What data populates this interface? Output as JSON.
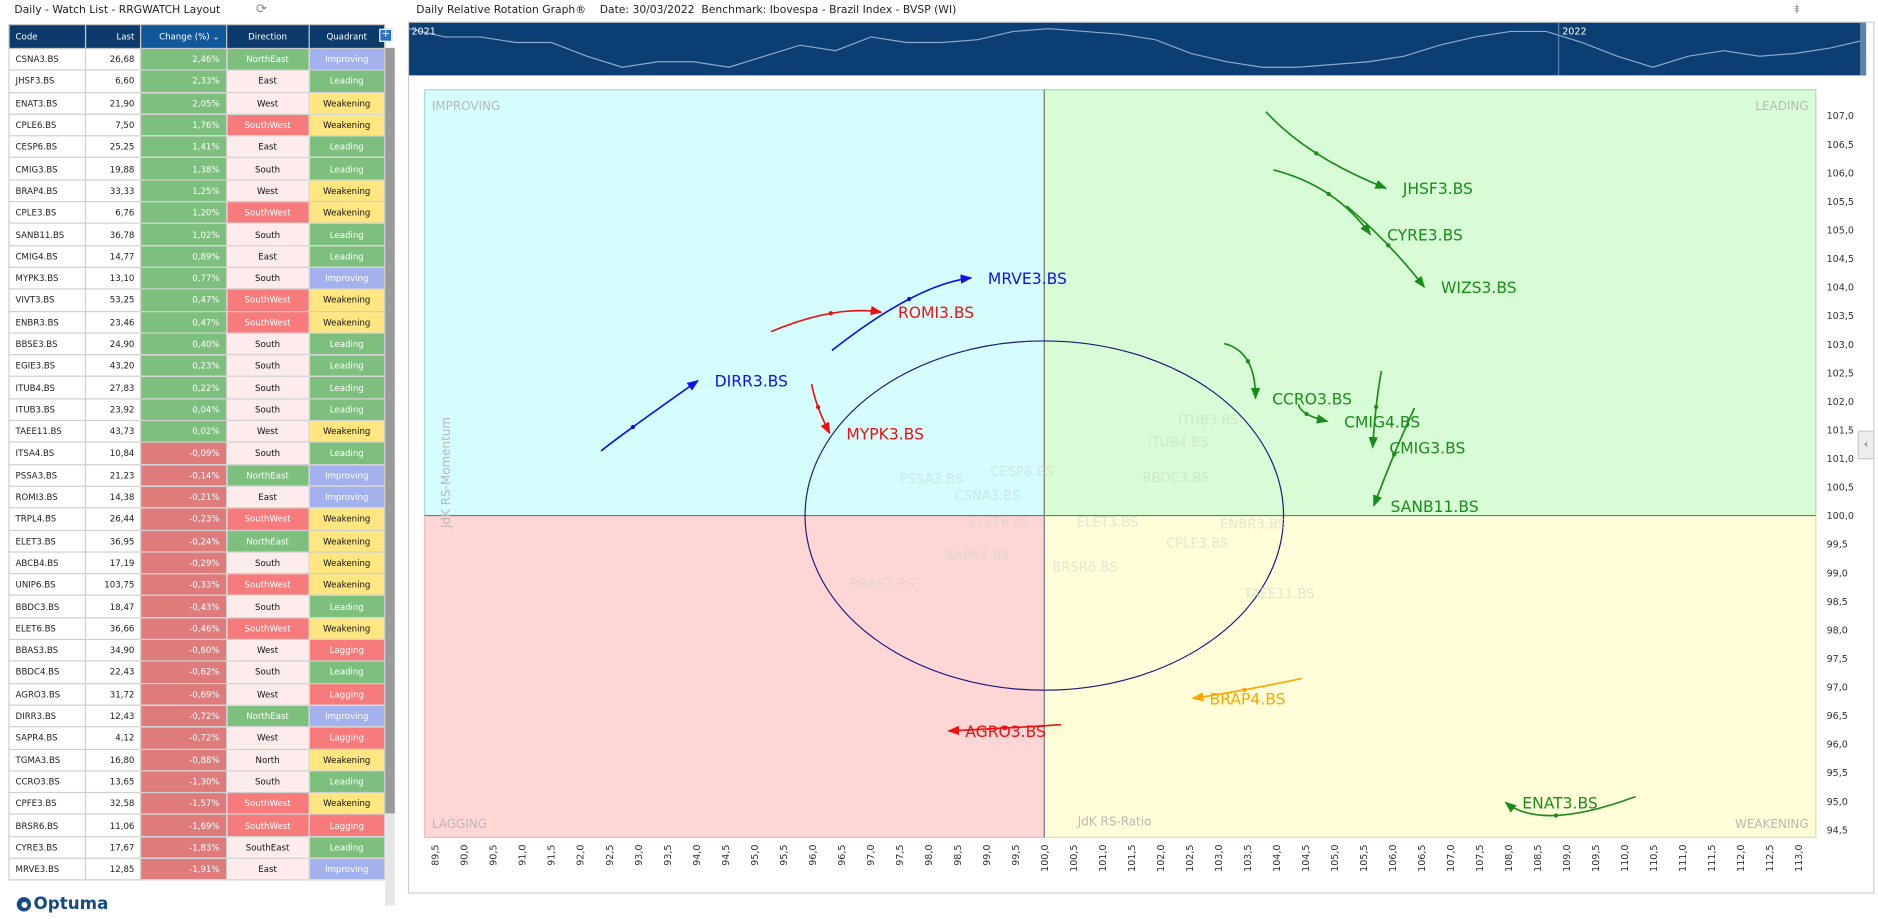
{
  "watchlist": {
    "title": "Daily - Watch List - RRGWATCH Layout",
    "columns": [
      "Code",
      "Last",
      "Change (%)",
      "Direction",
      "Quadrant"
    ],
    "sort_icon": "chevron-down-icon",
    "rows": [
      [
        "CSNA3.BS",
        "26,68",
        "2,46%",
        "NorthEast",
        "Improving"
      ],
      [
        "JHSF3.BS",
        "6,60",
        "2,33%",
        "East",
        "Leading"
      ],
      [
        "ENAT3.BS",
        "21,90",
        "2,05%",
        "West",
        "Weakening"
      ],
      [
        "CPLE6.BS",
        "7,50",
        "1,76%",
        "SouthWest",
        "Weakening"
      ],
      [
        "CESP6.BS",
        "25,25",
        "1,41%",
        "East",
        "Leading"
      ],
      [
        "CMIG3.BS",
        "19,88",
        "1,38%",
        "South",
        "Leading"
      ],
      [
        "BRAP4.BS",
        "33,33",
        "1,25%",
        "West",
        "Weakening"
      ],
      [
        "CPLE3.BS",
        "6,76",
        "1,20%",
        "SouthWest",
        "Weakening"
      ],
      [
        "SANB11.BS",
        "36,78",
        "1,02%",
        "South",
        "Leading"
      ],
      [
        "CMIG4.BS",
        "14,77",
        "0,89%",
        "East",
        "Leading"
      ],
      [
        "MYPK3.BS",
        "13,10",
        "0,77%",
        "South",
        "Improving"
      ],
      [
        "VIVT3.BS",
        "53,25",
        "0,47%",
        "SouthWest",
        "Weakening"
      ],
      [
        "ENBR3.BS",
        "23,46",
        "0,47%",
        "SouthWest",
        "Weakening"
      ],
      [
        "BBSE3.BS",
        "24,90",
        "0,40%",
        "South",
        "Leading"
      ],
      [
        "EGIE3.BS",
        "43,20",
        "0,23%",
        "South",
        "Leading"
      ],
      [
        "ITUB4.BS",
        "27,83",
        "0,22%",
        "South",
        "Leading"
      ],
      [
        "ITUB3.BS",
        "23,92",
        "0,04%",
        "South",
        "Leading"
      ],
      [
        "TAEE11.BS",
        "43,73",
        "0,02%",
        "West",
        "Weakening"
      ],
      [
        "ITSA4.BS",
        "10,84",
        "-0,09%",
        "South",
        "Leading"
      ],
      [
        "PSSA3.BS",
        "21,23",
        "-0,14%",
        "NorthEast",
        "Improving"
      ],
      [
        "ROMI3.BS",
        "14,38",
        "-0,21%",
        "East",
        "Improving"
      ],
      [
        "TRPL4.BS",
        "26,44",
        "-0,23%",
        "SouthWest",
        "Weakening"
      ],
      [
        "ELET3.BS",
        "36,95",
        "-0,24%",
        "NorthEast",
        "Weakening"
      ],
      [
        "ABCB4.BS",
        "17,19",
        "-0,29%",
        "South",
        "Weakening"
      ],
      [
        "UNIP6.BS",
        "103,75",
        "-0,33%",
        "SouthWest",
        "Weakening"
      ],
      [
        "BBDC3.BS",
        "18,47",
        "-0,43%",
        "South",
        "Leading"
      ],
      [
        "ELET6.BS",
        "36,66",
        "-0,46%",
        "SouthWest",
        "Weakening"
      ],
      [
        "BBAS3.BS",
        "34,90",
        "-0,60%",
        "West",
        "Lagging"
      ],
      [
        "BBDC4.BS",
        "22,43",
        "-0,62%",
        "South",
        "Leading"
      ],
      [
        "AGRO3.BS",
        "31,72",
        "-0,69%",
        "West",
        "Lagging"
      ],
      [
        "DIRR3.BS",
        "12,43",
        "-0,72%",
        "NorthEast",
        "Improving"
      ],
      [
        "SAPR4.BS",
        "4,12",
        "-0,72%",
        "West",
        "Lagging"
      ],
      [
        "TGMA3.BS",
        "16,80",
        "-0,88%",
        "North",
        "Weakening"
      ],
      [
        "CCRO3.BS",
        "13,65",
        "-1,30%",
        "South",
        "Leading"
      ],
      [
        "CPFE3.BS",
        "32,58",
        "-1,57%",
        "SouthWest",
        "Weakening"
      ],
      [
        "BRSR6.BS",
        "11,06",
        "-1,69%",
        "SouthWest",
        "Lagging"
      ],
      [
        "CYRE3.BS",
        "17,67",
        "-1,83%",
        "SouthEast",
        "Leading"
      ],
      [
        "MRVE3.BS",
        "12,85",
        "-1,91%",
        "East",
        "Improving"
      ]
    ]
  },
  "colors": {
    "header": "#0b3a6b",
    "positive": "#7dbf7d",
    "negative": "#e07b7b",
    "Improving": "#a3b2ef",
    "Leading": "#7dbf7d",
    "Weakening": "#ffe680",
    "Lagging": "#f77b7b",
    "dir_NorthEast": "#7dbf7d",
    "dir_SouthWest": "#f77b7b",
    "dir_other": "#fdeceb"
  },
  "brand": "Optuma",
  "rrg": {
    "title": "Daily Relative Rotation Graph®    Date: 30/03/2022  Benchmark: Ibovespa - Brazil Index - BVSP (WI)",
    "navigator_years": [
      "2021",
      "2022"
    ],
    "quadrants": {
      "improving": "IMPROVING",
      "leading": "LEADING",
      "weakening": "WEAKENING",
      "lagging": "LAGGING"
    },
    "quadrant_colors": {
      "improving": "#d6fdfd",
      "leading": "#d8fdd6",
      "weakening": "#fffed8",
      "lagging": "#ffd6d6"
    }
  },
  "chart_data": {
    "type": "scatter",
    "xlabel": "JdK RS-Ratio",
    "ylabel": "JdK RS-Momentum",
    "xlim": [
      89.5,
      113.0
    ],
    "ylim": [
      94.5,
      107.0
    ],
    "x_ticks": [
      "89,5",
      "90,0",
      "90,5",
      "91,0",
      "91,5",
      "92,0",
      "92,5",
      "93,0",
      "93,5",
      "94,0",
      "94,5",
      "95,0",
      "95,5",
      "96,0",
      "96,5",
      "97,0",
      "97,5",
      "98,0",
      "98,5",
      "99,0",
      "99,5",
      "100,0",
      "100,5",
      "101,0",
      "101,5",
      "102,0",
      "102,5",
      "103,0",
      "103,5",
      "104,0",
      "104,5",
      "105,0",
      "105,5",
      "106,0",
      "106,5",
      "107,0",
      "107,5",
      "108,0",
      "108,5",
      "109,0",
      "109,5",
      "110,0",
      "110,5",
      "111,0",
      "111,5",
      "112,0",
      "112,5",
      "113,0"
    ],
    "y_ticks": [
      "94,5",
      "95,0",
      "95,5",
      "96,0",
      "96,5",
      "97,0",
      "97,5",
      "98,0",
      "98,5",
      "99,0",
      "99,5",
      "100,0",
      "100,5",
      "101,0",
      "101,5",
      "102,0",
      "102,5",
      "103,0",
      "103,5",
      "104,0",
      "104,5",
      "105,0",
      "105,5",
      "106,0",
      "106,5",
      "107,0"
    ],
    "center": [
      100,
      100
    ],
    "series": [
      {
        "name": "JHSF3.BS",
        "color": "#1a8c1a",
        "points": [
          [
            103.82,
            107.07
          ],
          [
            104.69,
            106.34
          ],
          [
            105.89,
            105.73
          ]
        ]
      },
      {
        "name": "CYRE3.BS",
        "color": "#1a8c1a",
        "points": [
          [
            103.95,
            106.05
          ],
          [
            104.9,
            105.63
          ],
          [
            105.62,
            104.92
          ]
        ]
      },
      {
        "name": "WIZS3.BS",
        "color": "#1a8c1a",
        "points": [
          [
            105.21,
            105.42
          ],
          [
            105.93,
            104.73
          ],
          [
            106.55,
            104.0
          ]
        ]
      },
      {
        "name": "MRVE3.BS",
        "color": "#1010ee",
        "points": [
          [
            96.34,
            102.89
          ],
          [
            97.67,
            103.79
          ],
          [
            98.74,
            104.16
          ]
        ]
      },
      {
        "name": "ROMI3.BS",
        "color": "#ee1010",
        "points": [
          [
            95.29,
            103.22
          ],
          [
            96.32,
            103.54
          ],
          [
            97.19,
            103.56
          ]
        ]
      },
      {
        "name": "DIRR3.BS",
        "color": "#1010ee",
        "points": [
          [
            92.36,
            101.13
          ],
          [
            92.91,
            101.55
          ],
          [
            94.03,
            102.36
          ]
        ]
      },
      {
        "name": "MYPK3.BS",
        "color": "#ee1010",
        "points": [
          [
            95.99,
            102.3
          ],
          [
            96.1,
            101.9
          ],
          [
            96.3,
            101.44
          ]
        ]
      },
      {
        "name": "CCRO3.BS",
        "color": "#1a8c1a",
        "points": [
          [
            103.1,
            103.01
          ],
          [
            103.51,
            102.7
          ],
          [
            103.64,
            102.05
          ]
        ]
      },
      {
        "name": "CMIG4.BS",
        "color": "#1a8c1a",
        "points": [
          [
            104.38,
            101.95
          ],
          [
            104.52,
            101.78
          ],
          [
            104.88,
            101.65
          ]
        ]
      },
      {
        "name": "CMIG3.BS",
        "color": "#1a8c1a",
        "points": [
          [
            105.81,
            102.53
          ],
          [
            105.72,
            101.9
          ],
          [
            105.66,
            101.19
          ]
        ]
      },
      {
        "name": "SANB11.BS",
        "color": "#1a8c1a",
        "points": [
          [
            106.38,
            101.88
          ],
          [
            106.03,
            101.07
          ],
          [
            105.68,
            100.17
          ]
        ]
      },
      {
        "name": "BRAP4.BS",
        "color": "#ffa500",
        "points": [
          [
            104.44,
            97.15
          ],
          [
            103.45,
            96.95
          ],
          [
            102.56,
            96.8
          ]
        ]
      },
      {
        "name": "AGRO3.BS",
        "color": "#ee1010",
        "points": [
          [
            100.29,
            96.34
          ],
          [
            99.32,
            96.28
          ],
          [
            98.35,
            96.23
          ]
        ]
      },
      {
        "name": "ENAT3.BS",
        "color": "#1a8c1a",
        "points": [
          [
            110.19,
            95.08
          ],
          [
            108.82,
            94.75
          ],
          [
            107.95,
            94.98
          ]
        ]
      }
    ],
    "faded_labels": [
      {
        "name": "PSSA3.BS",
        "x": 97.51,
        "y": 100.56
      },
      {
        "name": "CESP6.BS",
        "x": 99.07,
        "y": 100.69
      },
      {
        "name": "CSNA3.BS",
        "x": 98.45,
        "y": 100.27
      },
      {
        "name": "ELET6.BS",
        "x": 98.7,
        "y": 99.81
      },
      {
        "name": "ELET3.BS",
        "x": 100.56,
        "y": 99.81
      },
      {
        "name": "BBDC3.BS",
        "x": 101.69,
        "y": 100.59
      },
      {
        "name": "ITUB3.BS",
        "x": 102.31,
        "y": 101.59
      },
      {
        "name": "ITUB4.BS",
        "x": 101.79,
        "y": 101.21
      },
      {
        "name": "ENBR3.BS",
        "x": 103.03,
        "y": 99.77
      },
      {
        "name": "CPLE3.BS",
        "x": 102.1,
        "y": 99.44
      },
      {
        "name": "TAEE11.BS",
        "x": 103.44,
        "y": 98.56
      },
      {
        "name": "BRSR6.BS",
        "x": 100.14,
        "y": 99.02
      },
      {
        "name": "BBAS3.BS",
        "x": 96.64,
        "y": 98.72
      },
      {
        "name": "SAPR4.BS",
        "x": 98.29,
        "y": 99.23
      }
    ]
  }
}
